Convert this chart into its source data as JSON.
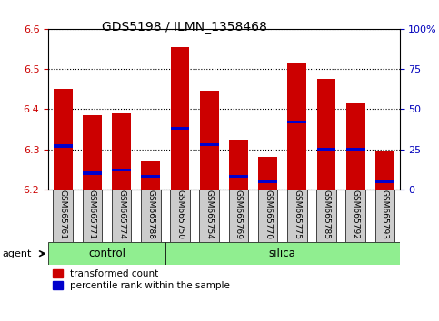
{
  "title": "GDS5198 / ILMN_1358468",
  "samples": [
    "GSM665761",
    "GSM665771",
    "GSM665774",
    "GSM665788",
    "GSM665750",
    "GSM665754",
    "GSM665769",
    "GSM665770",
    "GSM665775",
    "GSM665785",
    "GSM665792",
    "GSM665793"
  ],
  "transformed_counts": [
    6.45,
    6.385,
    6.39,
    6.27,
    6.555,
    6.445,
    6.325,
    6.28,
    6.515,
    6.475,
    6.415,
    6.295
  ],
  "percentile_ranks": [
    27,
    10,
    12,
    8,
    38,
    28,
    8,
    5,
    42,
    25,
    25,
    5
  ],
  "y_min": 6.2,
  "y_max": 6.6,
  "y_ticks": [
    6.2,
    6.3,
    6.4,
    6.5,
    6.6
  ],
  "y2_ticks": [
    0,
    25,
    50,
    75,
    100
  ],
  "bar_color_red": "#CC0000",
  "bar_color_blue": "#0000CC",
  "bar_width": 0.65,
  "baseline": 6.2,
  "group_bar_color": "#90EE90",
  "ylabel_left_color": "#CC0000",
  "ylabel_right_color": "#0000BB",
  "figsize": [
    4.83,
    3.54
  ],
  "dpi": 100,
  "n_control": 4,
  "n_silica": 8
}
